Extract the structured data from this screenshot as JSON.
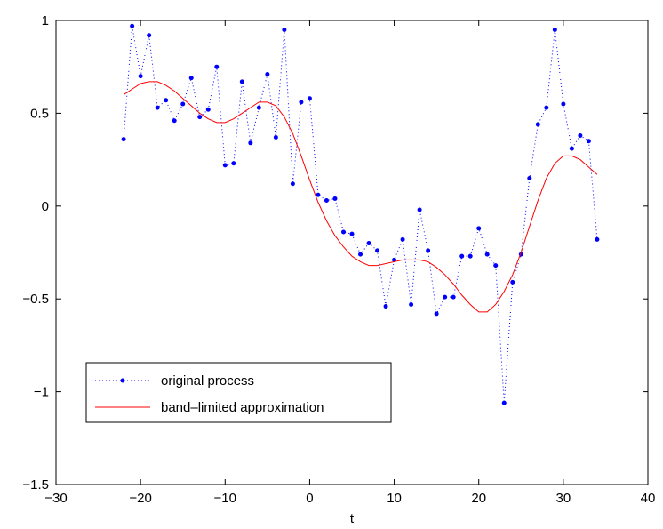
{
  "chart_data": {
    "type": "line",
    "title": "",
    "xlabel": "t",
    "ylabel": "",
    "xlim": [
      -30,
      40
    ],
    "ylim": [
      -1.5,
      1
    ],
    "xticks": [
      -30,
      -20,
      -10,
      0,
      10,
      20,
      30,
      40
    ],
    "yticks": [
      -1.5,
      -1,
      -0.5,
      0,
      0.5,
      1
    ],
    "xtick_labels": [
      "−30",
      "−20",
      "−10",
      "0",
      "10",
      "20",
      "30",
      "40"
    ],
    "ytick_labels": [
      "−1.5",
      "−1",
      "−0.5",
      "0",
      "0.5",
      "1"
    ],
    "grid": false,
    "legend_position": "bottom-left",
    "series": [
      {
        "name": "original process",
        "style": "dotted-with-markers",
        "color": "#0000ff",
        "x": [
          -22,
          -21,
          -20,
          -19,
          -18,
          -17,
          -16,
          -15,
          -14,
          -13,
          -12,
          -11,
          -10,
          -9,
          -8,
          -7,
          -6,
          -5,
          -4,
          -3,
          -2,
          -1,
          0,
          1,
          2,
          3,
          4,
          5,
          6,
          7,
          8,
          9,
          10,
          11,
          12,
          13,
          14,
          15,
          16,
          17,
          18,
          19,
          20,
          21,
          22,
          23,
          24,
          25,
          26,
          27,
          28,
          29,
          30,
          31,
          32,
          33,
          34
        ],
        "y": [
          0.36,
          0.97,
          0.7,
          0.92,
          0.53,
          0.57,
          0.46,
          0.55,
          0.69,
          0.48,
          0.52,
          0.75,
          0.22,
          0.23,
          0.67,
          0.34,
          0.53,
          0.71,
          0.37,
          0.95,
          0.12,
          0.56,
          0.58,
          0.06,
          0.03,
          0.04,
          -0.14,
          -0.15,
          -0.26,
          -0.2,
          -0.24,
          -0.54,
          -0.29,
          -0.18,
          -0.53,
          -0.02,
          -0.24,
          -0.58,
          -0.49,
          -0.49,
          -0.27,
          -0.27,
          -0.12,
          -0.26,
          -0.32,
          -1.06,
          -0.41,
          -0.26,
          0.15,
          0.44,
          0.53,
          0.95,
          0.55,
          0.31,
          0.38,
          0.35,
          -0.18
        ]
      },
      {
        "name": "band–limited approximation",
        "style": "solid",
        "color": "#ff0000",
        "x": [
          -22,
          -21,
          -20,
          -19,
          -18,
          -17,
          -16,
          -15,
          -14,
          -13,
          -12,
          -11,
          -10,
          -9,
          -8,
          -7,
          -6,
          -5,
          -4,
          -3,
          -2,
          -1,
          0,
          1,
          2,
          3,
          4,
          5,
          6,
          7,
          8,
          9,
          10,
          11,
          12,
          13,
          14,
          15,
          16,
          17,
          18,
          19,
          20,
          21,
          22,
          23,
          24,
          25,
          26,
          27,
          28,
          29,
          30,
          31,
          32,
          33,
          34
        ],
        "y": [
          0.6,
          0.63,
          0.66,
          0.67,
          0.67,
          0.65,
          0.62,
          0.58,
          0.54,
          0.5,
          0.47,
          0.45,
          0.45,
          0.47,
          0.5,
          0.53,
          0.56,
          0.56,
          0.54,
          0.48,
          0.39,
          0.27,
          0.14,
          0.02,
          -0.08,
          -0.16,
          -0.22,
          -0.27,
          -0.3,
          -0.32,
          -0.32,
          -0.31,
          -0.3,
          -0.29,
          -0.29,
          -0.29,
          -0.3,
          -0.33,
          -0.37,
          -0.42,
          -0.48,
          -0.53,
          -0.57,
          -0.57,
          -0.53,
          -0.46,
          -0.37,
          -0.25,
          -0.11,
          0.03,
          0.15,
          0.23,
          0.27,
          0.27,
          0.25,
          0.21,
          0.17
        ]
      }
    ]
  }
}
